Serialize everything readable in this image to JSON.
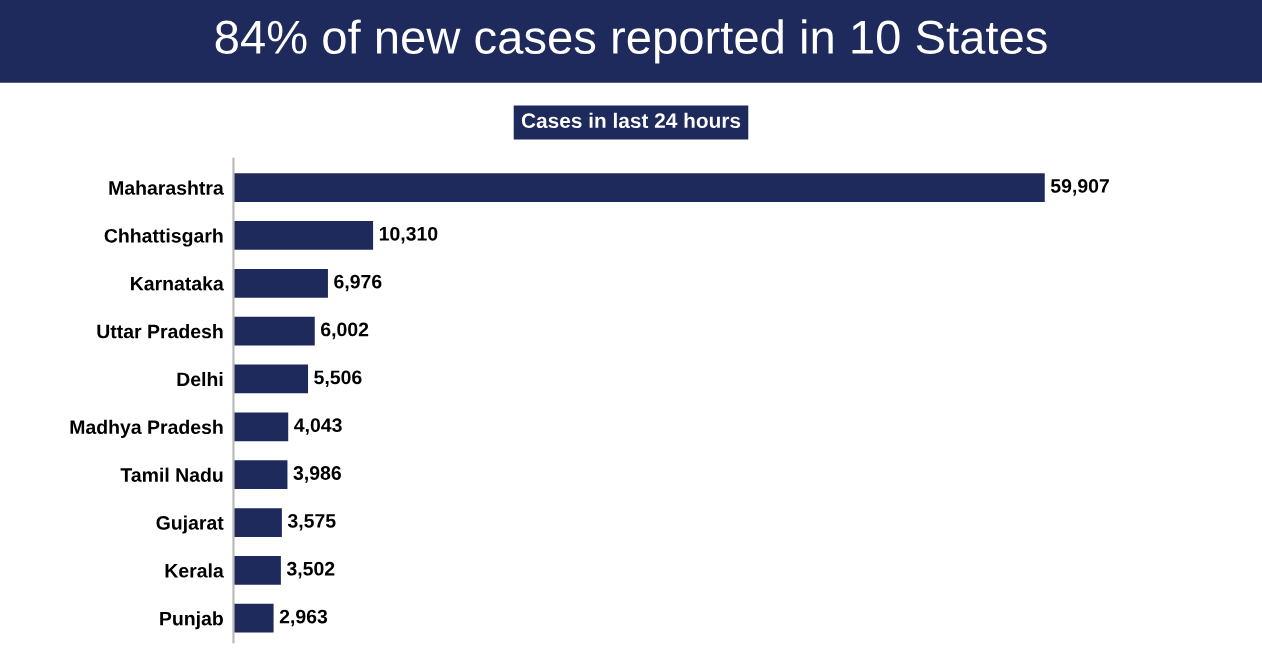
{
  "chart_data": {
    "type": "bar",
    "orientation": "horizontal",
    "title": "84% of new cases reported in 10 States",
    "subtitle": "Cases in last 24 hours",
    "categories": [
      "Maharashtra",
      "Chhattisgarh",
      "Karnataka",
      "Uttar Pradesh",
      "Delhi",
      "Madhya Pradesh",
      "Tamil Nadu",
      "Gujarat",
      "Kerala",
      "Punjab"
    ],
    "values": [
      59907,
      10310,
      6976,
      6002,
      5506,
      4043,
      3986,
      3575,
      3502,
      2963
    ],
    "value_labels": [
      "59,907",
      "10,310",
      "6,976",
      "6,002",
      "5,506",
      "4,043",
      "3,986",
      "3,575",
      "3,502",
      "2,963"
    ],
    "color": "#1f2a5c",
    "grid": false,
    "legend": false
  }
}
